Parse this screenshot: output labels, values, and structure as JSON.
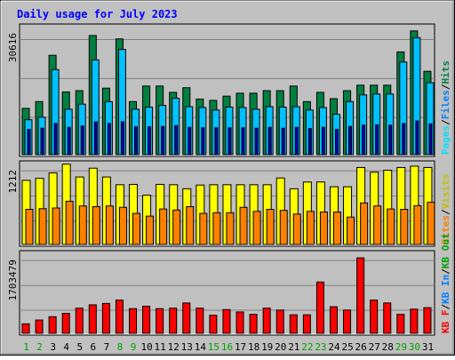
{
  "title": "Daily usage for July 2023",
  "colors": {
    "background": "#c0c0c0",
    "hits": "#008040",
    "files": "#00c0ff",
    "pages": "#00e0ff",
    "visits": "#ffff00",
    "sites": "#ff8000",
    "kbf": "#ff0000",
    "kbin": "#0080ff",
    "kbout": "#00a000",
    "weekend_label": "#00a000",
    "weekday_label": "#0000ff",
    "title_color": "#0000ff"
  },
  "chart_data": [
    {
      "type": "bar",
      "panel": "hits-files-pages",
      "ymax_label": "30616",
      "ylim": [
        0,
        30616
      ],
      "grid": true,
      "legend": [
        "Pages",
        "Files",
        "Hits"
      ],
      "legend_separator": "/",
      "categories": [
        "1",
        "2",
        "3",
        "4",
        "5",
        "6",
        "7",
        "8",
        "9",
        "10",
        "11",
        "12",
        "13",
        "14",
        "15",
        "16",
        "17",
        "18",
        "19",
        "20",
        "21",
        "22",
        "23",
        "24",
        "25",
        "26",
        "27",
        "28",
        "29",
        "30",
        "31"
      ],
      "series": [
        {
          "name": "Hits",
          "values": [
            11000,
            12600,
            23600,
            14900,
            15200,
            28300,
            15800,
            27500,
            12600,
            16300,
            16300,
            14800,
            15900,
            13200,
            12900,
            13900,
            14600,
            14600,
            15200,
            15200,
            16300,
            12600,
            14800,
            13300,
            15200,
            16500,
            16500,
            16500,
            24400,
            29400,
            19800
          ]
        },
        {
          "name": "Files",
          "values": [
            8300,
            8900,
            20200,
            10800,
            12000,
            22500,
            12600,
            25000,
            10800,
            11300,
            11700,
            13400,
            11400,
            11200,
            10600,
            11300,
            11200,
            10800,
            11400,
            11300,
            11400,
            10600,
            11200,
            9600,
            12600,
            14200,
            14400,
            14400,
            22000,
            27800,
            17100
          ]
        },
        {
          "name": "Pages",
          "values": [
            6000,
            6300,
            7400,
            6500,
            6800,
            7800,
            7400,
            7800,
            6600,
            6600,
            6700,
            6900,
            6500,
            6400,
            6400,
            6400,
            6400,
            6300,
            6500,
            6300,
            6500,
            6200,
            6500,
            6000,
            6700,
            7000,
            7100,
            7000,
            7400,
            8000,
            7300
          ]
        }
      ]
    },
    {
      "type": "bar",
      "panel": "visits-sites",
      "ymax_label": "1212",
      "ylim": [
        0,
        1212
      ],
      "grid": true,
      "legend": [
        "Sites",
        "Visits"
      ],
      "legend_separator": "/",
      "categories": [
        "1",
        "2",
        "3",
        "4",
        "5",
        "6",
        "7",
        "8",
        "9",
        "10",
        "11",
        "12",
        "13",
        "14",
        "15",
        "16",
        "17",
        "18",
        "19",
        "20",
        "21",
        "22",
        "23",
        "24",
        "25",
        "26",
        "27",
        "28",
        "29",
        "30",
        "31"
      ],
      "series": [
        {
          "name": "Visits",
          "values": [
            950,
            980,
            1060,
            1190,
            1000,
            1130,
            1000,
            885,
            890,
            730,
            890,
            885,
            825,
            880,
            885,
            885,
            885,
            885,
            885,
            985,
            825,
            925,
            925,
            855,
            855,
            1140,
            1070,
            1100,
            1140,
            1160,
            1140
          ]
        },
        {
          "name": "Sites",
          "values": [
            520,
            530,
            540,
            640,
            570,
            560,
            570,
            550,
            460,
            420,
            525,
            510,
            560,
            460,
            470,
            470,
            550,
            490,
            520,
            505,
            450,
            490,
            480,
            480,
            405,
            615,
            570,
            525,
            520,
            575,
            625
          ]
        }
      ]
    },
    {
      "type": "bar",
      "panel": "kbytes",
      "ymax_label": "1703479",
      "ylim": [
        0,
        1703479
      ],
      "grid": true,
      "legend": [
        "KB F",
        "KB In",
        "KB Out"
      ],
      "legend_separator": "/",
      "categories": [
        "1",
        "2",
        "3",
        "4",
        "5",
        "6",
        "7",
        "8",
        "9",
        "10",
        "11",
        "12",
        "13",
        "14",
        "15",
        "16",
        "17",
        "18",
        "19",
        "20",
        "21",
        "22",
        "23",
        "24",
        "25",
        "26",
        "27",
        "28",
        "29",
        "30",
        "31"
      ],
      "series": [
        {
          "name": "KB F",
          "values": [
            200000,
            280000,
            350000,
            420000,
            530000,
            600000,
            630000,
            700000,
            520000,
            570000,
            520000,
            530000,
            640000,
            530000,
            380000,
            500000,
            450000,
            400000,
            530000,
            490000,
            390000,
            390000,
            1080000,
            560000,
            490000,
            1590000,
            700000,
            640000,
            400000,
            510000,
            540000
          ]
        }
      ]
    }
  ]
}
